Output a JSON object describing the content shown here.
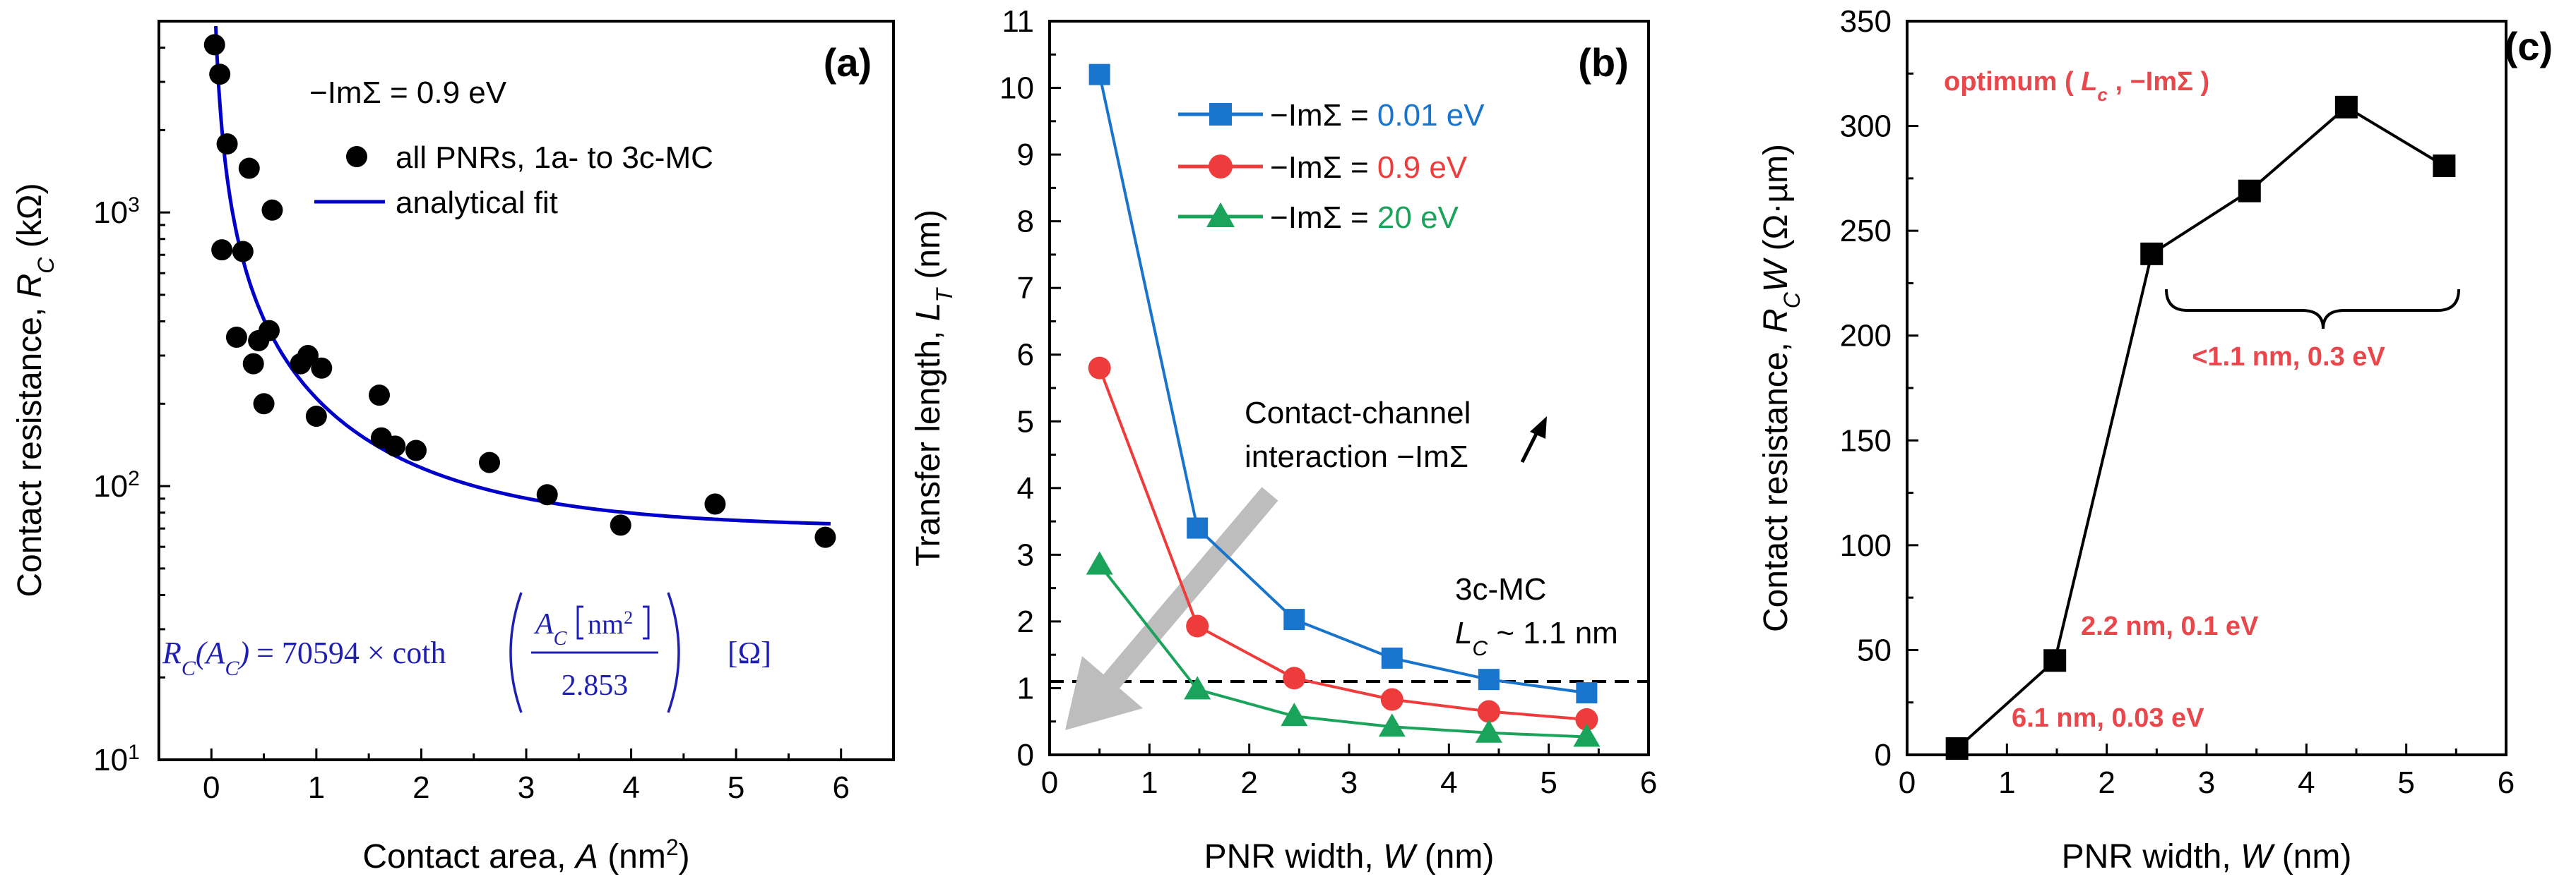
{
  "panels": [
    {
      "label": "(a)",
      "xlabel": "Contact area, ",
      "xlabel_var": "A",
      "xlabel_unit_pre": "  (nm",
      "xlabel_sup": "2",
      "xlabel_unit_post": ")",
      "ylabel": "Contact resistance, ",
      "ylabel_var": "R",
      "ylabel_sub": "C",
      "ylabel_unit": "  (kΩ)",
      "annotation": "−ImΣ = 0.9 eV",
      "legend": [
        {
          "label": "all PNRs, 1a- to 3c-MC",
          "color": "#000000",
          "marker": "circle"
        },
        {
          "label": "analytical fit",
          "color": "#0000c8",
          "marker": "line"
        }
      ],
      "formula": {
        "lhs": "R",
        "lhs_sub": "C",
        "lhs_arg": "(A",
        "lhs_arg_sub": "C",
        "lhs_arg_close": ")",
        "equals_coeff": "= 70594 × coth",
        "numerator": "A",
        "numerator_sub": "C",
        "numerator_unit": "nm",
        "numerator_sup": "2",
        "denominator": "2.853",
        "unit": "[Ω]"
      }
    },
    {
      "label": "(b)",
      "xlabel": "PNR width, ",
      "xlabel_var": "W",
      "xlabel_unit": "  (nm)",
      "ylabel": "Transfer length, ",
      "ylabel_var": "L",
      "ylabel_sub": "T",
      "ylabel_unit": "  (nm)",
      "arrow_text_line1": "Contact-channel",
      "arrow_text_line2": "interaction −ImΣ",
      "ref_text_line1": "3c-MC",
      "ref_var": "L",
      "ref_sub": "C",
      "ref_value": " ~ 1.1 nm"
    },
    {
      "label": "(c)",
      "xlabel": "PNR width, ",
      "xlabel_var": "W",
      "xlabel_unit": "  (nm)",
      "ylabel": "Contact resistance, ",
      "ylabel_var": "R",
      "ylabel_sub": "C",
      "ylabel_var2": "W",
      "ylabel_unit": "  (Ω·µm)",
      "optimum_pre": "optimum ( ",
      "optimum_var": "L",
      "optimum_sub": "c",
      "optimum_post": " , −ImΣ )",
      "brace_text": "<1.1 nm, 0.3 eV",
      "point_labels": [
        "2.2 nm, 0.1 eV",
        "6.1 nm, 0.03 eV"
      ]
    }
  ],
  "colors": {
    "series_001": "#1874cd",
    "series_09": "#ee3b3b",
    "series_20": "#1aa35a",
    "annot_red": "#e8474b",
    "fit_blue": "#0000c8",
    "formula_blue": "#1f1fb4"
  },
  "chart_data": [
    {
      "type": "scatter",
      "title": "(a)",
      "xlabel": "Contact area, A (nm^2)",
      "ylabel": "Contact resistance, R_C (kΩ)",
      "xlim": [
        -0.5,
        6.5
      ],
      "ylim": [
        10,
        5000
      ],
      "yscale": "log",
      "xticks": [
        0,
        1,
        2,
        3,
        4,
        5,
        6
      ],
      "yticks": [
        10,
        100,
        1000
      ],
      "ytick_labels": [
        "10",
        "10",
        "10"
      ],
      "ytick_sups": [
        "1",
        "2",
        "3"
      ],
      "series": [
        {
          "name": "all PNRs, 1a- to 3c-MC",
          "type": "scatter",
          "x": [
            0.03,
            0.08,
            0.1,
            0.15,
            0.24,
            0.3,
            0.36,
            0.4,
            0.45,
            0.5,
            0.55,
            0.58,
            0.85,
            0.92,
            1.0,
            1.05,
            1.6,
            1.62,
            1.75,
            1.95,
            2.65,
            3.2,
            3.9,
            4.8,
            5.85
          ],
          "y": [
            4100,
            3200,
            730,
            1780,
            350,
            720,
            1450,
            280,
            340,
            200,
            370,
            1020,
            280,
            300,
            180,
            270,
            215,
            150,
            140,
            135,
            122,
            93,
            72,
            86,
            65
          ]
        },
        {
          "name": "analytical fit",
          "type": "line",
          "function": "70.594 * coth(A / 2.853)",
          "x_range": [
            0.03,
            5.9
          ]
        }
      ]
    },
    {
      "type": "line",
      "title": "(b)",
      "xlabel": "PNR width, W (nm)",
      "ylabel": "Transfer length, L_T (nm)",
      "xlim": [
        0,
        6
      ],
      "ylim": [
        0,
        11
      ],
      "xticks": [
        0,
        1,
        2,
        3,
        4,
        5,
        6
      ],
      "yticks": [
        0,
        1,
        2,
        3,
        4,
        5,
        6,
        7,
        8,
        9,
        10,
        11
      ],
      "x": [
        0.5,
        1.48,
        2.45,
        3.43,
        4.4,
        5.38
      ],
      "series": [
        {
          "name": "−ImΣ = ",
          "value_label": "0.01 eV",
          "marker": "square",
          "color": "#1874cd",
          "values": [
            10.2,
            3.4,
            2.03,
            1.45,
            1.13,
            0.93
          ]
        },
        {
          "name": "−ImΣ = ",
          "value_label": "0.9 eV",
          "marker": "circle",
          "color": "#ee3b3b",
          "values": [
            5.8,
            1.93,
            1.15,
            0.83,
            0.65,
            0.53
          ]
        },
        {
          "name": "−ImΣ = ",
          "value_label": "20 eV",
          "marker": "triangle",
          "color": "#1aa35a",
          "values": [
            2.85,
            0.98,
            0.58,
            0.42,
            0.33,
            0.27
          ]
        }
      ],
      "reference_line": {
        "y": 1.1,
        "style": "dashed"
      }
    },
    {
      "type": "line",
      "title": "(c)",
      "xlabel": "PNR width, W (nm)",
      "ylabel": "Contact resistance, R_C W (Ω·µm)",
      "xlim": [
        0,
        6
      ],
      "ylim": [
        0,
        350
      ],
      "xticks": [
        0,
        1,
        2,
        3,
        4,
        5,
        6
      ],
      "yticks": [
        0,
        50,
        100,
        150,
        200,
        250,
        300,
        350
      ],
      "series": [
        {
          "name": "R_C W",
          "marker": "square",
          "color": "#000000",
          "x": [
            0.5,
            1.48,
            2.45,
            3.43,
            4.4,
            5.38
          ],
          "values": [
            3,
            45,
            239,
            269,
            309,
            281
          ]
        }
      ]
    }
  ]
}
